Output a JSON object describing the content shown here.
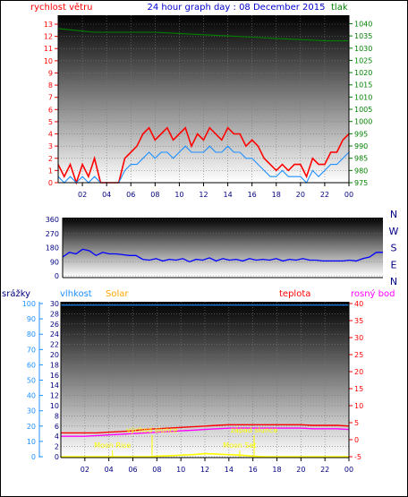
{
  "header": {
    "left_label": "rychlost větru",
    "title": "24 hour graph day : 08 December 2015",
    "right_label": "tlak"
  },
  "colors": {
    "wind": "#ff0000",
    "gust_avg": "#1e90ff",
    "pressure": "#008000",
    "direction": "#0000ff",
    "rain": "#0000ff",
    "humidity": "#1e90ff",
    "solar": "#ffa500",
    "temp": "#ff0000",
    "dew": "#ff00ff",
    "sun_events": "#ffff00",
    "left_axis": "#ff0000",
    "pressure_axis": "#008000"
  },
  "time_ticks": [
    "02",
    "04",
    "06",
    "08",
    "10",
    "12",
    "14",
    "16",
    "18",
    "20",
    "22",
    "00"
  ],
  "chart_data": [
    {
      "type": "line",
      "id": "wind_pressure",
      "x_unit": "hour",
      "xlim": [
        0,
        24
      ],
      "left_axis": {
        "label": "rychlost větru",
        "range": [
          0,
          13
        ],
        "ticks": [
          0,
          1,
          2,
          3,
          4,
          5,
          6,
          7,
          8,
          9,
          10,
          11,
          12,
          13
        ]
      },
      "right_axis": {
        "label": "tlak",
        "range": [
          975,
          1042
        ],
        "ticks": [
          975,
          980,
          985,
          990,
          995,
          1000,
          1005,
          1010,
          1015,
          1020,
          1025,
          1030,
          1035,
          1040
        ]
      },
      "series": [
        {
          "name": "wind_gust",
          "axis": "left",
          "x": [
            0,
            0.5,
            1,
            1.5,
            2,
            2.5,
            3,
            3.5,
            4,
            4.5,
            5,
            5.5,
            6,
            6.5,
            7,
            7.5,
            8,
            8.5,
            9,
            9.5,
            10,
            10.5,
            11,
            11.5,
            12,
            12.5,
            13,
            13.5,
            14,
            14.5,
            15,
            15.5,
            16,
            16.5,
            17,
            17.5,
            18,
            18.5,
            19,
            19.5,
            20,
            20.5,
            21,
            21.5,
            22,
            22.5,
            23,
            23.5,
            24
          ],
          "y": [
            1.5,
            0.5,
            1.5,
            0,
            1.5,
            0.5,
            2,
            0,
            0,
            0,
            0,
            2,
            2.5,
            3,
            4,
            4.5,
            3.5,
            4,
            4.5,
            3.5,
            4,
            4.5,
            3,
            4,
            3.5,
            4.5,
            4,
            3.5,
            4.5,
            4,
            4,
            3,
            3.5,
            3,
            2,
            1.5,
            1,
            1.5,
            1,
            1.5,
            1.5,
            0.5,
            2,
            1.5,
            1.5,
            2.5,
            2.5,
            3.5,
            4
          ]
        },
        {
          "name": "wind_avg",
          "axis": "left",
          "x": [
            0,
            0.5,
            1,
            1.5,
            2,
            2.5,
            3,
            3.5,
            4,
            4.5,
            5,
            5.5,
            6,
            6.5,
            7,
            7.5,
            8,
            8.5,
            9,
            9.5,
            10,
            10.5,
            11,
            11.5,
            12,
            12.5,
            13,
            13.5,
            14,
            14.5,
            15,
            15.5,
            16,
            16.5,
            17,
            17.5,
            18,
            18.5,
            19,
            19.5,
            20,
            20.5,
            21,
            21.5,
            22,
            22.5,
            23,
            23.5,
            24
          ],
          "y": [
            0.5,
            0,
            0.5,
            0,
            0.5,
            0,
            0.5,
            0,
            0,
            0,
            0,
            1,
            1.5,
            1.5,
            2,
            2.5,
            2,
            2.5,
            2.5,
            2,
            2.5,
            3,
            2.5,
            2.5,
            2.5,
            3,
            2.5,
            2.5,
            3,
            2.5,
            2.5,
            2,
            2,
            1.5,
            1,
            0.5,
            0.5,
            1,
            0.5,
            0.5,
            0.5,
            0,
            1,
            0.5,
            1,
            1.5,
            1.5,
            2,
            2.5
          ]
        },
        {
          "name": "pressure",
          "axis": "right",
          "x": [
            0,
            1,
            2,
            3,
            4,
            6,
            8,
            10,
            12,
            14,
            16,
            18,
            20,
            22,
            23,
            24
          ],
          "y": [
            1038,
            1037.5,
            1037,
            1036.5,
            1036.5,
            1036.5,
            1036.5,
            1036,
            1035.5,
            1035,
            1034.5,
            1034,
            1033.5,
            1033,
            1033,
            1033
          ]
        }
      ]
    },
    {
      "type": "line",
      "id": "wind_direction",
      "x_unit": "hour",
      "xlim": [
        0,
        24
      ],
      "ylim": [
        0,
        360
      ],
      "y_ticks": [
        0,
        90,
        180,
        270,
        360
      ],
      "compass_labels": [
        "N",
        "W",
        "S",
        "E",
        "N"
      ],
      "series": [
        {
          "name": "direction",
          "x": [
            0,
            0.5,
            1,
            1.5,
            2,
            2.5,
            3,
            3.5,
            4,
            4.5,
            5,
            5.5,
            6,
            6.5,
            7,
            7.5,
            8,
            8.5,
            9,
            9.5,
            10,
            10.5,
            11,
            11.5,
            12,
            12.5,
            13,
            13.5,
            14,
            14.5,
            15,
            15.5,
            16,
            16.5,
            17,
            17.5,
            18,
            18.5,
            19,
            19.5,
            20,
            20.5,
            21,
            21.5,
            22,
            22.5,
            23,
            23.5,
            24
          ],
          "y": [
            120,
            150,
            140,
            170,
            160,
            130,
            150,
            140,
            140,
            135,
            130,
            130,
            105,
            100,
            110,
            95,
            105,
            100,
            110,
            90,
            105,
            100,
            115,
            95,
            110,
            100,
            105,
            95,
            110,
            100,
            105,
            100,
            110,
            95,
            105,
            100,
            110,
            100,
            100,
            95,
            95,
            95,
            95,
            100,
            95,
            110,
            120,
            150,
            150
          ]
        }
      ]
    },
    {
      "type": "line",
      "id": "temperature_humidity",
      "x_unit": "hour",
      "xlim": [
        0,
        24
      ],
      "rain_axis": {
        "label": "srážky",
        "range": [
          0,
          30
        ],
        "ticks": [
          0,
          2,
          4,
          6,
          8,
          10,
          12,
          14,
          16,
          18,
          20,
          22,
          24,
          26,
          28,
          30
        ]
      },
      "humidity_axis": {
        "label": "vlhkost",
        "range": [
          0,
          100
        ],
        "ticks": [
          0,
          10,
          20,
          30,
          40,
          50,
          60,
          70,
          80,
          90,
          100
        ]
      },
      "solar_label": "Solar",
      "temp_axis": {
        "label": "teplota",
        "range": [
          -5,
          40
        ],
        "ticks": [
          -5,
          0,
          5,
          10,
          15,
          20,
          25,
          30,
          35,
          40
        ]
      },
      "dew_label": "rosný bod",
      "series": [
        {
          "name": "humidity",
          "x": [
            0,
            24
          ],
          "y": [
            99,
            99
          ]
        },
        {
          "name": "temperature",
          "x": [
            0,
            1,
            2,
            3,
            4,
            5,
            6,
            7,
            8,
            9,
            10,
            11,
            12,
            13,
            14,
            15,
            16,
            17,
            18,
            19,
            20,
            21,
            22,
            23,
            24
          ],
          "y": [
            2,
            2,
            2,
            2,
            2.2,
            2.4,
            2.6,
            3,
            3.2,
            3.4,
            3.6,
            3.8,
            4,
            4.2,
            4.4,
            4.4,
            4.4,
            4.4,
            4.4,
            4.4,
            4.4,
            4.2,
            4.2,
            4.2,
            4
          ]
        },
        {
          "name": "dew_point",
          "x": [
            0,
            1,
            2,
            3,
            4,
            5,
            6,
            7,
            8,
            9,
            10,
            11,
            12,
            13,
            14,
            15,
            16,
            17,
            18,
            19,
            20,
            21,
            22,
            23,
            24
          ],
          "y": [
            1,
            1,
            1,
            1.2,
            1.4,
            1.6,
            1.8,
            2,
            2.2,
            2.4,
            2.6,
            2.8,
            3,
            3.2,
            3.4,
            3.4,
            3.4,
            3.4,
            3.4,
            3.4,
            3.4,
            3.2,
            3.2,
            3.2,
            3
          ]
        },
        {
          "name": "solar",
          "x": [
            0,
            7.5,
            8,
            9,
            10,
            11,
            12,
            13,
            14,
            15,
            16,
            17,
            24
          ],
          "y": [
            0,
            0,
            0.1,
            0.2,
            0.3,
            0.4,
            0.6,
            0.5,
            0.4,
            0.3,
            0.1,
            0,
            0
          ]
        }
      ],
      "annotations": [
        {
          "text": "východ slunce",
          "x": 7.6,
          "kind": "sunrise"
        },
        {
          "text": "západ slunce",
          "x": 16.1,
          "kind": "sunset"
        },
        {
          "text": "Moon Rise",
          "x": 4.3,
          "kind": "moonrise"
        },
        {
          "text": "Moon Set",
          "x": 14.9,
          "kind": "moonset"
        }
      ]
    }
  ]
}
